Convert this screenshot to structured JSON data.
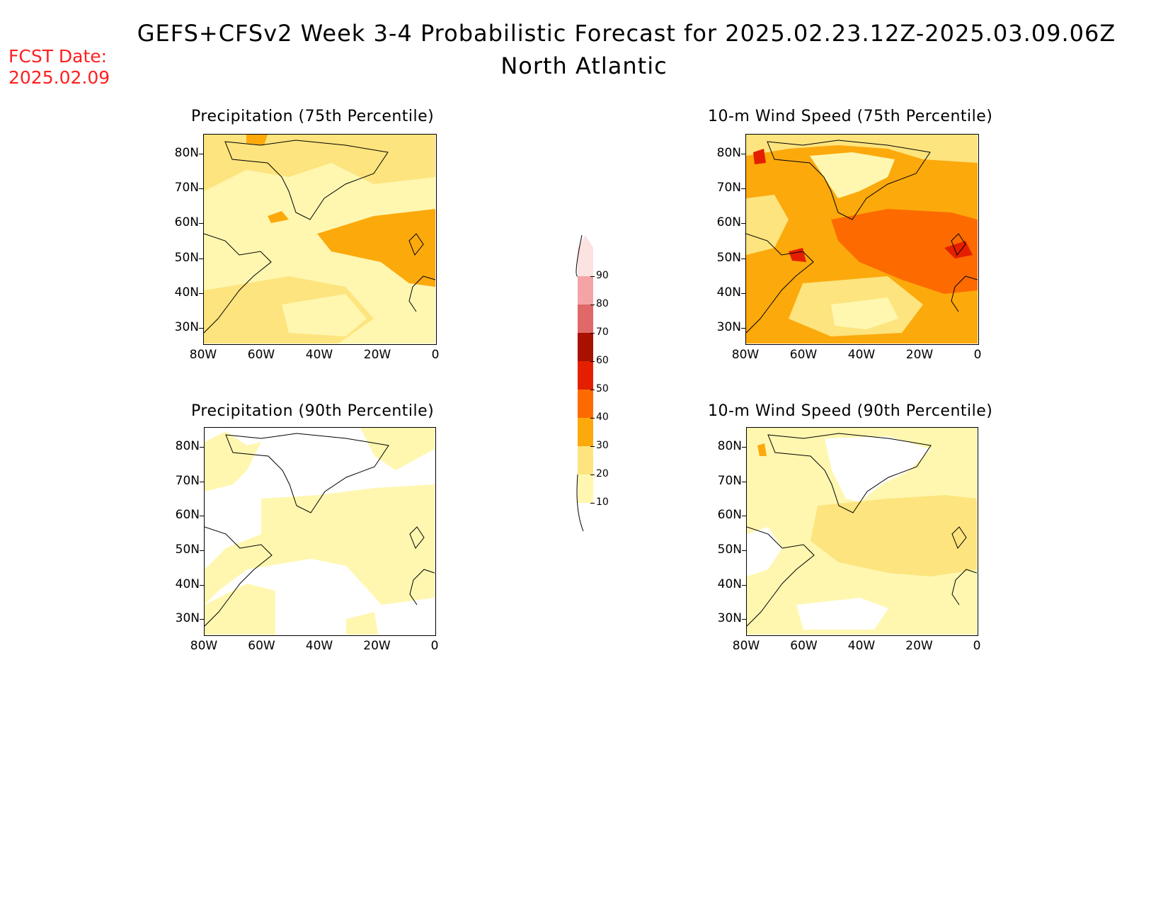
{
  "header": {
    "title": "GEFS+CFSv2 Week 3-4 Probabilistic Forecast for 2025.02.23.12Z-2025.03.09.06Z",
    "region": "North Atlantic",
    "fcst_label": "FCST Date:",
    "fcst_date": "2025.02.09"
  },
  "panels": [
    {
      "title": "Precipitation (75th Percentile)"
    },
    {
      "title": "10-m Wind Speed (75th Percentile)"
    },
    {
      "title": "Precipitation (90th Percentile)"
    },
    {
      "title": "10-m Wind Speed (90th Percentile)"
    }
  ],
  "axes": {
    "lat_labels": [
      "80N",
      "70N",
      "60N",
      "50N",
      "40N",
      "30N"
    ],
    "lon_labels": [
      "80W",
      "60W",
      "40W",
      "20W",
      "0"
    ]
  },
  "colorbar": {
    "levels": [
      "10",
      "20",
      "30",
      "40",
      "50",
      "60",
      "70",
      "80",
      "90"
    ],
    "colors": [
      "#fff7b0",
      "#fde47e",
      "#fca90c",
      "#fd6b00",
      "#e41f00",
      "#a81000",
      "#e06868",
      "#f4a4a4",
      "#fde2e2"
    ]
  }
}
